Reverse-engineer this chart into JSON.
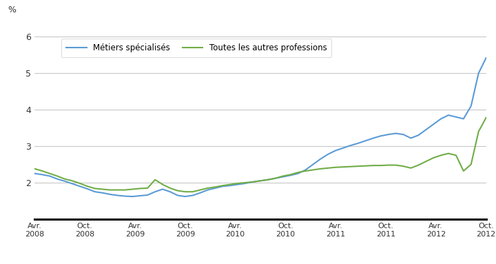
{
  "ylabel": "%",
  "ylim": [
    1,
    6.5
  ],
  "yticks": [
    1,
    2,
    3,
    4,
    5,
    6
  ],
  "line1_label": "Métiers spécialisés",
  "line2_label": "Toutes les autres professions",
  "line1_color": "#5b9bd5",
  "line2_color": "#70ad47",
  "background_color": "#ffffff",
  "grid_color": "#c8c8c8",
  "tick_labels": [
    "Avr.\n2008",
    "Oct.\n2008",
    "Avr.\n2009",
    "Oct.\n2009",
    "Avr.\n2010",
    "Oct.\n2010",
    "Avr.\n2011",
    "Oct.\n2011",
    "Avr.\n2012",
    "Oct.\n2012"
  ],
  "line1_values": [
    2.25,
    2.22,
    2.18,
    2.1,
    2.04,
    1.97,
    1.9,
    1.83,
    1.75,
    1.72,
    1.68,
    1.65,
    1.63,
    1.62,
    1.64,
    1.66,
    1.75,
    1.82,
    1.75,
    1.65,
    1.62,
    1.65,
    1.72,
    1.8,
    1.85,
    1.9,
    1.92,
    1.95,
    1.98,
    2.02,
    2.05,
    2.08,
    2.12,
    2.16,
    2.2,
    2.25,
    2.35,
    2.5,
    2.65,
    2.78,
    2.88,
    2.95,
    3.02,
    3.08,
    3.15,
    3.22,
    3.28,
    3.32,
    3.35,
    3.32,
    3.22,
    3.3,
    3.45,
    3.6,
    3.75,
    3.85,
    3.8,
    3.75,
    4.1,
    5.0,
    5.42
  ],
  "line2_values": [
    2.38,
    2.32,
    2.25,
    2.18,
    2.1,
    2.05,
    1.98,
    1.9,
    1.84,
    1.82,
    1.8,
    1.8,
    1.8,
    1.82,
    1.84,
    1.85,
    2.08,
    1.95,
    1.85,
    1.78,
    1.75,
    1.75,
    1.8,
    1.85,
    1.88,
    1.92,
    1.95,
    1.98,
    2.0,
    2.02,
    2.05,
    2.08,
    2.12,
    2.18,
    2.22,
    2.28,
    2.32,
    2.35,
    2.38,
    2.4,
    2.42,
    2.43,
    2.44,
    2.45,
    2.46,
    2.47,
    2.47,
    2.48,
    2.48,
    2.45,
    2.4,
    2.48,
    2.58,
    2.68,
    2.75,
    2.8,
    2.75,
    2.32,
    2.5,
    3.4,
    3.78
  ]
}
